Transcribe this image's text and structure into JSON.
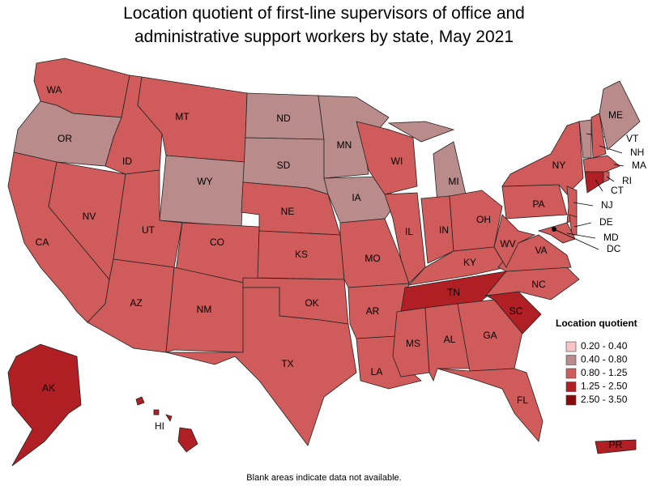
{
  "title": "Location quotient of first-line supervisors of office and administrative support workers by state, May 2021",
  "legend": {
    "title": "Location quotient",
    "items": [
      {
        "label": "0.20 - 0.40",
        "color": "#f6c4c4"
      },
      {
        "label": "0.40 - 0.80",
        "color": "#b98b8b"
      },
      {
        "label": "0.80 - 1.25",
        "color": "#d05b5b"
      },
      {
        "label": "1.25 - 2.50",
        "color": "#b01f24"
      },
      {
        "label": "2.50 - 3.50",
        "color": "#8a0a0a"
      }
    ]
  },
  "states": [
    {
      "abbr": "WA",
      "bin": 2
    },
    {
      "abbr": "OR",
      "bin": 1
    },
    {
      "abbr": "CA",
      "bin": 2
    },
    {
      "abbr": "NV",
      "bin": 2
    },
    {
      "abbr": "ID",
      "bin": 2
    },
    {
      "abbr": "MT",
      "bin": 2
    },
    {
      "abbr": "WY",
      "bin": 1
    },
    {
      "abbr": "UT",
      "bin": 2
    },
    {
      "abbr": "CO",
      "bin": 2
    },
    {
      "abbr": "AZ",
      "bin": 2
    },
    {
      "abbr": "NM",
      "bin": 2
    },
    {
      "abbr": "ND",
      "bin": 1
    },
    {
      "abbr": "SD",
      "bin": 1
    },
    {
      "abbr": "NE",
      "bin": 2
    },
    {
      "abbr": "KS",
      "bin": 2
    },
    {
      "abbr": "OK",
      "bin": 2
    },
    {
      "abbr": "TX",
      "bin": 2
    },
    {
      "abbr": "MN",
      "bin": 1
    },
    {
      "abbr": "IA",
      "bin": 1
    },
    {
      "abbr": "MO",
      "bin": 2
    },
    {
      "abbr": "AR",
      "bin": 2
    },
    {
      "abbr": "LA",
      "bin": 2
    },
    {
      "abbr": "WI",
      "bin": 2
    },
    {
      "abbr": "IL",
      "bin": 2
    },
    {
      "abbr": "MI",
      "bin": 1
    },
    {
      "abbr": "IN",
      "bin": 2
    },
    {
      "abbr": "OH",
      "bin": 2
    },
    {
      "abbr": "KY",
      "bin": 2
    },
    {
      "abbr": "TN",
      "bin": 3
    },
    {
      "abbr": "MS",
      "bin": 2
    },
    {
      "abbr": "AL",
      "bin": 2
    },
    {
      "abbr": "GA",
      "bin": 2
    },
    {
      "abbr": "FL",
      "bin": 2
    },
    {
      "abbr": "SC",
      "bin": 3
    },
    {
      "abbr": "NC",
      "bin": 2
    },
    {
      "abbr": "VA",
      "bin": 2
    },
    {
      "abbr": "WV",
      "bin": 2
    },
    {
      "abbr": "PA",
      "bin": 2
    },
    {
      "abbr": "NY",
      "bin": 2
    },
    {
      "abbr": "NJ",
      "bin": 2
    },
    {
      "abbr": "DE",
      "bin": 2
    },
    {
      "abbr": "MD",
      "bin": 2
    },
    {
      "abbr": "DC",
      "bin": 2
    },
    {
      "abbr": "VT",
      "bin": 1
    },
    {
      "abbr": "NH",
      "bin": 2
    },
    {
      "abbr": "ME",
      "bin": 1
    },
    {
      "abbr": "MA",
      "bin": 2
    },
    {
      "abbr": "CT",
      "bin": 3
    },
    {
      "abbr": "RI",
      "bin": 2
    },
    {
      "abbr": "AK",
      "bin": 3
    },
    {
      "abbr": "HI",
      "bin": 3
    },
    {
      "abbr": "PR",
      "bin": 3
    }
  ],
  "note": "Blank areas indicate data not available."
}
